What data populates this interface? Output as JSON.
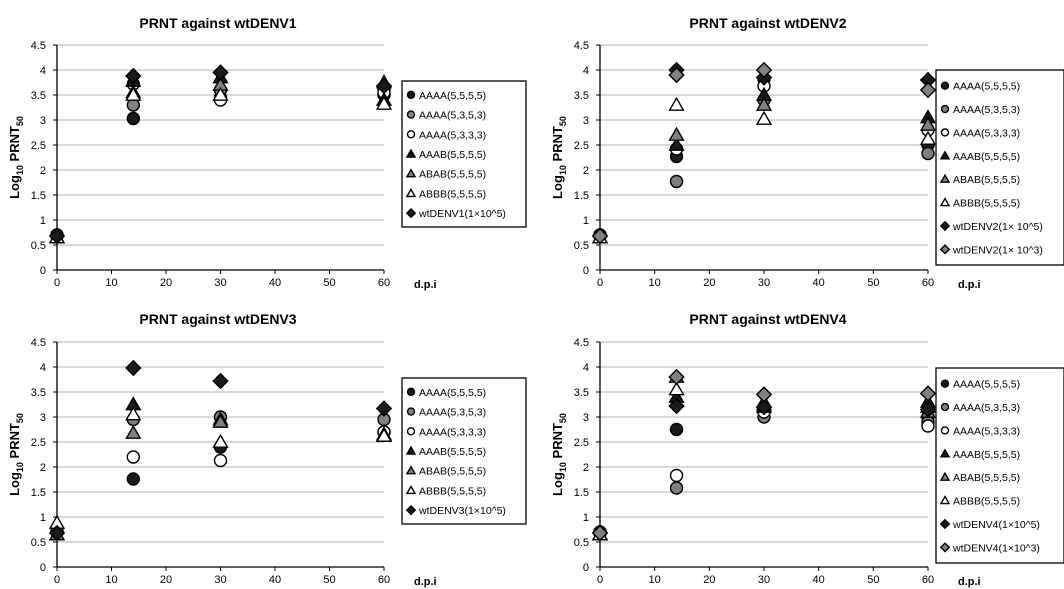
{
  "figure": {
    "ylabel_main": "Log",
    "ylabel_sub": "10",
    "ylabel_rest": " PRNT",
    "ylabel_subscript2": "50",
    "xlabel": "d.p.i"
  },
  "colors": {
    "black": "#1a1a1a",
    "gray": "#808080",
    "white": "#ffffff",
    "outline": "#000000",
    "grid": "#b3b3b3",
    "axis": "#000000"
  },
  "chart_data": [
    {
      "type": "scatter",
      "title": "PRNT against wtDENV1",
      "xlabel": "d.p.i",
      "ylabel": "Log10 PRNT50",
      "xlim": [
        0,
        60
      ],
      "ylim": [
        0,
        4.5
      ],
      "xticks": [
        "0",
        "10",
        "20",
        "30",
        "40",
        "50",
        "60"
      ],
      "yticks": [
        "0",
        "0.5",
        "1",
        "1.5",
        "2",
        "2.5",
        "3",
        "3.5",
        "4",
        "4.5"
      ],
      "grid": "horizontal",
      "legend_position": "right",
      "series": [
        {
          "name": "AAAA(5,5,5,5)",
          "marker": "circle",
          "fill": "black",
          "points": [
            [
              0,
              0.7
            ],
            [
              14,
              3.03
            ],
            [
              30,
              3.45
            ],
            [
              60,
              3.62
            ]
          ]
        },
        {
          "name": "AAAA(5,3,5,3)",
          "marker": "circle",
          "fill": "gray",
          "points": [
            [
              0,
              0.7
            ],
            [
              14,
              3.3
            ],
            [
              30,
              3.6
            ],
            [
              60,
              3.5
            ]
          ]
        },
        {
          "name": "AAAA(5,3,3,3)",
          "marker": "circle",
          "fill": "white",
          "points": [
            [
              0,
              0.68
            ],
            [
              14,
              3.72
            ],
            [
              30,
              3.4
            ],
            [
              60,
              3.55
            ]
          ]
        },
        {
          "name": "AAAB(5,5,5,5)",
          "marker": "triangle",
          "fill": "black",
          "points": [
            [
              0,
              0.65
            ],
            [
              14,
              3.78
            ],
            [
              30,
              3.85
            ],
            [
              60,
              3.4
            ]
          ]
        },
        {
          "name": "ABAB(5,5,5,5)",
          "marker": "triangle",
          "fill": "gray",
          "points": [
            [
              0,
              0.65
            ],
            [
              14,
              3.55
            ],
            [
              30,
              3.7
            ],
            [
              60,
              3.75
            ]
          ]
        },
        {
          "name": "ABBB(5,5,5,5)",
          "marker": "triangle",
          "fill": "white",
          "points": [
            [
              0,
              0.65
            ],
            [
              14,
              3.5
            ],
            [
              30,
              3.5
            ],
            [
              60,
              3.32
            ]
          ]
        },
        {
          "name": "wtDENV1(1×10^5)",
          "marker": "diamond",
          "fill": "black",
          "points": [
            [
              0,
              0.68
            ],
            [
              14,
              3.88
            ],
            [
              30,
              3.95
            ],
            [
              60,
              3.68
            ]
          ]
        }
      ]
    },
    {
      "type": "scatter",
      "title": "PRNT against wtDENV2",
      "xlabel": "d.p.i",
      "ylabel": "Log10 PRNT50",
      "xlim": [
        0,
        60
      ],
      "ylim": [
        0,
        4.5
      ],
      "xticks": [
        "0",
        "10",
        "20",
        "30",
        "40",
        "50",
        "60"
      ],
      "yticks": [
        "0",
        "0.5",
        "1",
        "1.5",
        "2",
        "2.5",
        "3",
        "3.5",
        "4",
        "4.5"
      ],
      "grid": "horizontal",
      "legend_position": "right",
      "series": [
        {
          "name": "AAAA(5,5,5,5)",
          "marker": "circle",
          "fill": "black",
          "points": [
            [
              0,
              0.7
            ],
            [
              14,
              2.27
            ],
            [
              30,
              3.82
            ],
            [
              60,
              2.5
            ]
          ]
        },
        {
          "name": "AAAA(5,3,5,3)",
          "marker": "circle",
          "fill": "gray",
          "points": [
            [
              0,
              0.7
            ],
            [
              14,
              1.77
            ],
            [
              30,
              3.4
            ],
            [
              60,
              2.33
            ]
          ]
        },
        {
          "name": "AAAA(5,3,3,3)",
          "marker": "circle",
          "fill": "white",
          "points": [
            [
              0,
              0.68
            ],
            [
              14,
              2.42
            ],
            [
              30,
              3.68
            ],
            [
              60,
              2.8
            ]
          ]
        },
        {
          "name": "AAAB(5,5,5,5)",
          "marker": "triangle",
          "fill": "black",
          "points": [
            [
              0,
              0.65
            ],
            [
              14,
              2.5
            ],
            [
              30,
              3.5
            ],
            [
              60,
              3.05
            ]
          ]
        },
        {
          "name": "ABAB(5,5,5,5)",
          "marker": "triangle",
          "fill": "gray",
          "points": [
            [
              0,
              0.65
            ],
            [
              14,
              2.7
            ],
            [
              30,
              3.3
            ],
            [
              60,
              2.9
            ]
          ]
        },
        {
          "name": "ABBB(5,5,5,5)",
          "marker": "triangle",
          "fill": "white",
          "points": [
            [
              0,
              0.65
            ],
            [
              14,
              3.3
            ],
            [
              30,
              3.02
            ],
            [
              60,
              2.62
            ]
          ]
        },
        {
          "name": "wtDENV2(1× 10^5)",
          "marker": "diamond",
          "fill": "black",
          "points": [
            [
              0,
              0.68
            ],
            [
              14,
              4.0
            ],
            [
              30,
              3.85
            ],
            [
              60,
              3.8
            ]
          ]
        },
        {
          "name": "wtDENV2(1× 10^3)",
          "marker": "diamond",
          "fill": "gray",
          "points": [
            [
              0,
              0.68
            ],
            [
              14,
              3.9
            ],
            [
              30,
              4.0
            ],
            [
              60,
              3.6
            ]
          ]
        }
      ]
    },
    {
      "type": "scatter",
      "title": "PRNT against wtDENV3",
      "xlabel": "d.p.i",
      "ylabel": "Log10 PRNT50",
      "xlim": [
        0,
        60
      ],
      "ylim": [
        0,
        4.5
      ],
      "xticks": [
        "0",
        "10",
        "20",
        "30",
        "40",
        "50",
        "60"
      ],
      "yticks": [
        "0",
        "0.5",
        "1",
        "1.5",
        "2",
        "2.5",
        "3",
        "3.5",
        "4",
        "4.5"
      ],
      "grid": "horizontal",
      "legend_position": "right",
      "series": [
        {
          "name": "AAAA(5,5,5,5)",
          "marker": "circle",
          "fill": "black",
          "points": [
            [
              0,
              0.7
            ],
            [
              14,
              1.76
            ],
            [
              30,
              2.4
            ],
            [
              60,
              2.7
            ]
          ]
        },
        {
          "name": "AAAA(5,3,5,3)",
          "marker": "circle",
          "fill": "gray",
          "points": [
            [
              0,
              0.7
            ],
            [
              14,
              2.95
            ],
            [
              30,
              3.0
            ],
            [
              60,
              2.95
            ]
          ]
        },
        {
          "name": "AAAA(5,3,3,3)",
          "marker": "circle",
          "fill": "white",
          "points": [
            [
              0,
              0.72
            ],
            [
              14,
              2.2
            ],
            [
              30,
              2.13
            ],
            [
              60,
              2.7
            ]
          ]
        },
        {
          "name": "AAAB(5,5,5,5)",
          "marker": "triangle",
          "fill": "black",
          "points": [
            [
              0,
              0.65
            ],
            [
              14,
              3.25
            ],
            [
              30,
              2.95
            ],
            [
              60,
              2.65
            ]
          ]
        },
        {
          "name": "ABAB(5,5,5,5)",
          "marker": "triangle",
          "fill": "gray",
          "points": [
            [
              0,
              0.65
            ],
            [
              14,
              2.68
            ],
            [
              30,
              2.9
            ],
            [
              60,
              2.62
            ]
          ]
        },
        {
          "name": "ABBB(5,5,5,5)",
          "marker": "triangle",
          "fill": "white",
          "points": [
            [
              0,
              0.88
            ],
            [
              14,
              3.05
            ],
            [
              30,
              2.5
            ],
            [
              60,
              2.62
            ]
          ]
        },
        {
          "name": "wtDENV3(1×10^5)",
          "marker": "diamond",
          "fill": "black",
          "points": [
            [
              0,
              0.68
            ],
            [
              14,
              3.98
            ],
            [
              30,
              3.72
            ],
            [
              60,
              3.17
            ]
          ]
        }
      ]
    },
    {
      "type": "scatter",
      "title": "PRNT against wtDENV4",
      "xlabel": "d.p.i",
      "ylabel": "Log10 PRNT50",
      "xlim": [
        0,
        60
      ],
      "ylim": [
        0,
        4.5
      ],
      "xticks": [
        "0",
        "10",
        "20",
        "30",
        "40",
        "50",
        "60"
      ],
      "yticks": [
        "0",
        "0.5",
        "1",
        "1.5",
        "2",
        "2.5",
        "3",
        "3.5",
        "4",
        "4.5"
      ],
      "grid": "horizontal",
      "legend_position": "right",
      "series": [
        {
          "name": "AAAA(5,5,5,5)",
          "marker": "circle",
          "fill": "black",
          "points": [
            [
              0,
              0.7
            ],
            [
              14,
              2.75
            ],
            [
              30,
              3.15
            ],
            [
              60,
              3.0
            ]
          ]
        },
        {
          "name": "AAAA(5,3,5,3)",
          "marker": "circle",
          "fill": "gray",
          "points": [
            [
              0,
              0.7
            ],
            [
              14,
              1.58
            ],
            [
              30,
              3.0
            ],
            [
              60,
              2.9
            ]
          ]
        },
        {
          "name": "AAAA(5,3,3,3)",
          "marker": "circle",
          "fill": "white",
          "points": [
            [
              0,
              0.68
            ],
            [
              14,
              1.83
            ],
            [
              30,
              3.1
            ],
            [
              60,
              2.82
            ]
          ]
        },
        {
          "name": "AAAB(5,5,5,5)",
          "marker": "triangle",
          "fill": "black",
          "points": [
            [
              0,
              0.65
            ],
            [
              14,
              3.4
            ],
            [
              30,
              3.2
            ],
            [
              60,
              3.3
            ]
          ]
        },
        {
          "name": "ABAB(5,5,5,5)",
          "marker": "triangle",
          "fill": "gray",
          "points": [
            [
              0,
              0.65
            ],
            [
              14,
              3.8
            ],
            [
              30,
              3.25
            ],
            [
              60,
              3.1
            ]
          ]
        },
        {
          "name": "ABBB(5,5,5,5)",
          "marker": "triangle",
          "fill": "white",
          "points": [
            [
              0,
              0.65
            ],
            [
              14,
              3.55
            ],
            [
              30,
              3.3
            ],
            [
              60,
              3.2
            ]
          ]
        },
        {
          "name": "wtDENV4(1×10^5)",
          "marker": "diamond",
          "fill": "black",
          "points": [
            [
              0,
              0.68
            ],
            [
              14,
              3.22
            ],
            [
              30,
              3.2
            ],
            [
              60,
              3.15
            ]
          ]
        },
        {
          "name": "wtDENV4(1×10^3)",
          "marker": "diamond",
          "fill": "gray",
          "points": [
            [
              0,
              0.68
            ],
            [
              14,
              3.8
            ],
            [
              30,
              3.45
            ],
            [
              60,
              3.47
            ]
          ]
        }
      ]
    }
  ]
}
